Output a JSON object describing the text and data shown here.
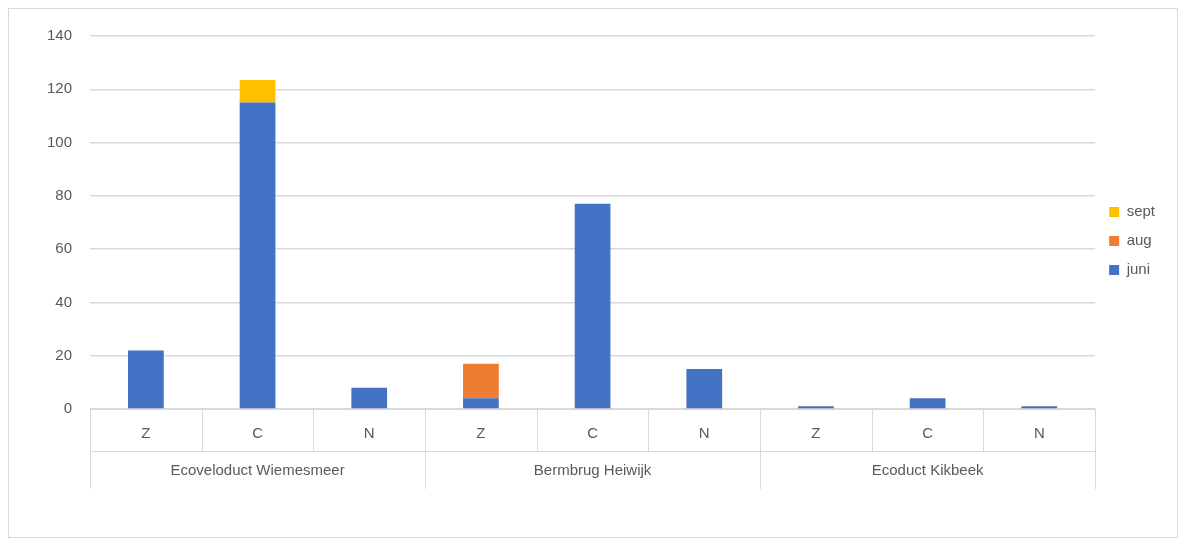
{
  "chart_data": {
    "type": "bar",
    "stacked": true,
    "categories": [
      "Z",
      "C",
      "N",
      "Z",
      "C",
      "N",
      "Z",
      "C",
      "N"
    ],
    "series": [
      {
        "name": "juni",
        "color": "#4472c4",
        "values": [
          22,
          115,
          8,
          4,
          77,
          15,
          1,
          4,
          1
        ]
      },
      {
        "name": "aug",
        "color": "#ed7d31",
        "values": [
          null,
          null,
          null,
          13,
          null,
          null,
          null,
          null,
          null
        ]
      },
      {
        "name": "sept",
        "color": "#ffc000",
        "values": [
          null,
          8.5,
          null,
          null,
          null,
          null,
          null,
          null,
          null
        ]
      }
    ],
    "annotations": [
      "Ecoveloduct Wiemesmeer",
      "Bermbrug Heiwijk",
      "Ecoduct Kikbeek"
    ],
    "ylim": [
      0,
      140
    ],
    "yticks": [
      0,
      20,
      40,
      60,
      80,
      100,
      120,
      140
    ],
    "grid": "y",
    "legend": "right"
  }
}
